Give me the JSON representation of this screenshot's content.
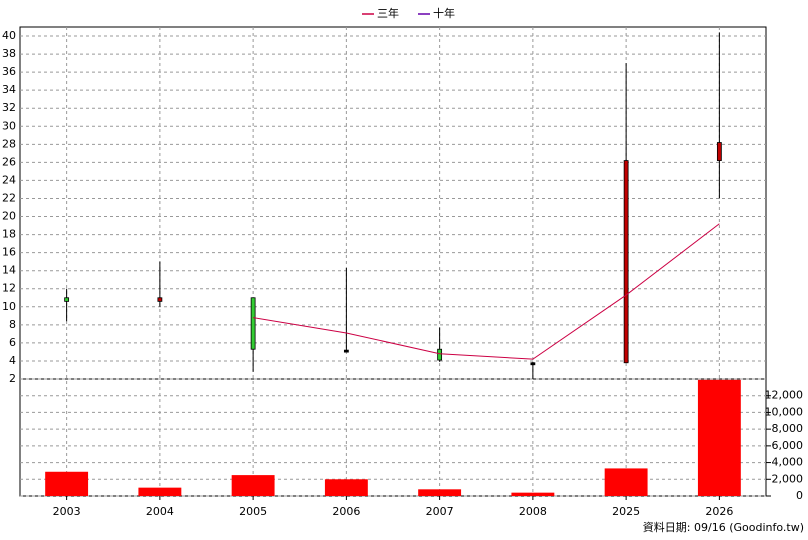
{
  "chart_data": {
    "type": "candlestick",
    "categories": [
      "2003",
      "2004",
      "2005",
      "2006",
      "2007",
      "2008",
      "2025",
      "2026"
    ],
    "open": [
      11,
      10.6,
      11,
      5.2,
      5.3,
      3.8,
      3.8,
      26.2
    ],
    "high": [
      12,
      15,
      11,
      14.3,
      7.7,
      3.9,
      37,
      40.4
    ],
    "low": [
      8.4,
      10,
      2.8,
      5,
      3.9,
      2,
      3.8,
      22
    ],
    "close": [
      10.6,
      11,
      5.3,
      5.2,
      4.1,
      3.8,
      26.2,
      28.2
    ],
    "up_color": "#c00000",
    "down_color": "#33cc33",
    "flat_color": "#000000",
    "ylim": [
      2,
      41
    ],
    "yticks": [
      2,
      4,
      6,
      8,
      10,
      12,
      14,
      16,
      18,
      20,
      22,
      24,
      26,
      28,
      30,
      32,
      34,
      36,
      38,
      40
    ],
    "grid": true,
    "series": [
      {
        "name": "三年",
        "color": "#cc0044",
        "values": [
          null,
          null,
          8.8,
          7.1,
          4.8,
          4.2,
          11.3,
          19.2
        ]
      },
      {
        "name": "十年",
        "color": "#6600aa",
        "values": [
          null,
          null,
          null,
          null,
          null,
          null,
          null,
          null
        ]
      }
    ],
    "volume": {
      "values": [
        2900,
        1000,
        2500,
        2000,
        800,
        400,
        3300,
        13900
      ],
      "color": "#ff0000",
      "ylim": [
        0,
        14000
      ],
      "yticks": [
        0,
        {
          "value": 2000,
          "label": "2,000"
        },
        {
          "value": 4000,
          "label": "4,000"
        },
        {
          "value": 6000,
          "label": "6,000"
        },
        {
          "value": 8000,
          "label": "8,000"
        },
        {
          "value": 10000,
          "label": "10,000"
        },
        {
          "value": 12000,
          "label": "12,000"
        }
      ]
    },
    "footer": "資料日期: 09/16 (Goodinfo.tw)"
  }
}
